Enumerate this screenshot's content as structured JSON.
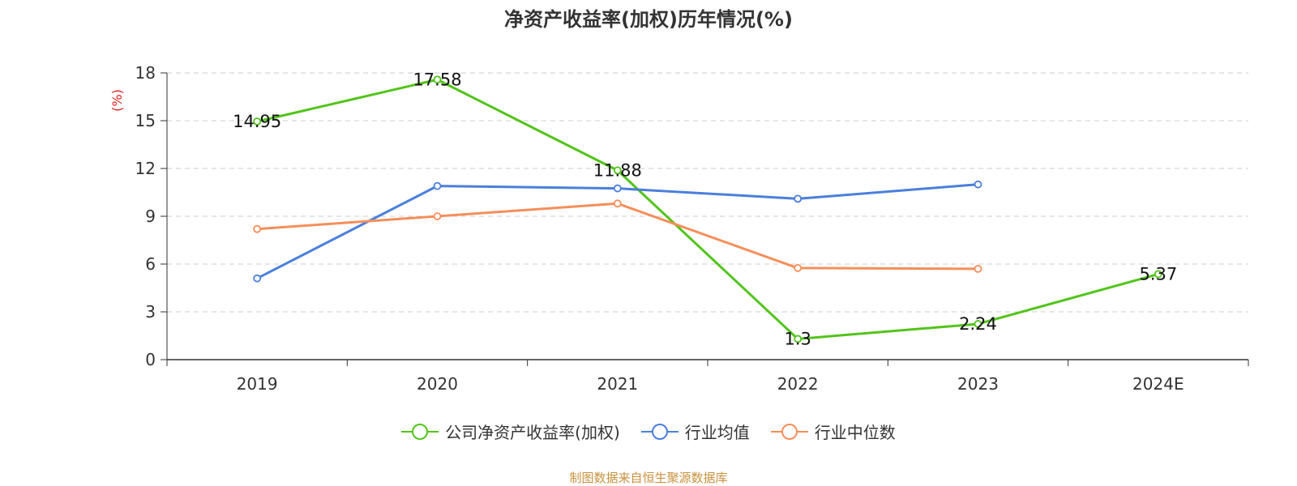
{
  "chart_data": {
    "type": "line",
    "title": "净资产收益率(加权)历年情况(%)",
    "ylabel": "(%)",
    "xlabel": "",
    "categories": [
      "2019",
      "2020",
      "2021",
      "2022",
      "2023",
      "2024E"
    ],
    "ylim": [
      0,
      18
    ],
    "yticks": [
      0,
      3,
      6,
      9,
      12,
      15,
      18
    ],
    "grid": "horizontal dashed",
    "legend_position": "bottom",
    "series": [
      {
        "name": "公司净资产收益率(加权)",
        "color": "#52c41a",
        "values": [
          14.95,
          17.58,
          11.88,
          1.3,
          2.24,
          5.37
        ],
        "labels": [
          "14.95",
          "17.58",
          "11.88",
          "1.3",
          "2.24",
          "5.37"
        ]
      },
      {
        "name": "行业均值",
        "color": "#4a7fdc",
        "values": [
          5.1,
          10.9,
          10.75,
          10.1,
          11.0,
          null
        ]
      },
      {
        "name": "行业中位数",
        "color": "#f58e5a",
        "values": [
          8.2,
          9.0,
          9.8,
          5.75,
          5.7,
          null
        ]
      }
    ]
  },
  "source": "制图数据来自恒生聚源数据库",
  "colors": {
    "axis": "#333333",
    "grid": "#cccccc",
    "ylabel": "#e02020",
    "source": "#c8913c"
  }
}
